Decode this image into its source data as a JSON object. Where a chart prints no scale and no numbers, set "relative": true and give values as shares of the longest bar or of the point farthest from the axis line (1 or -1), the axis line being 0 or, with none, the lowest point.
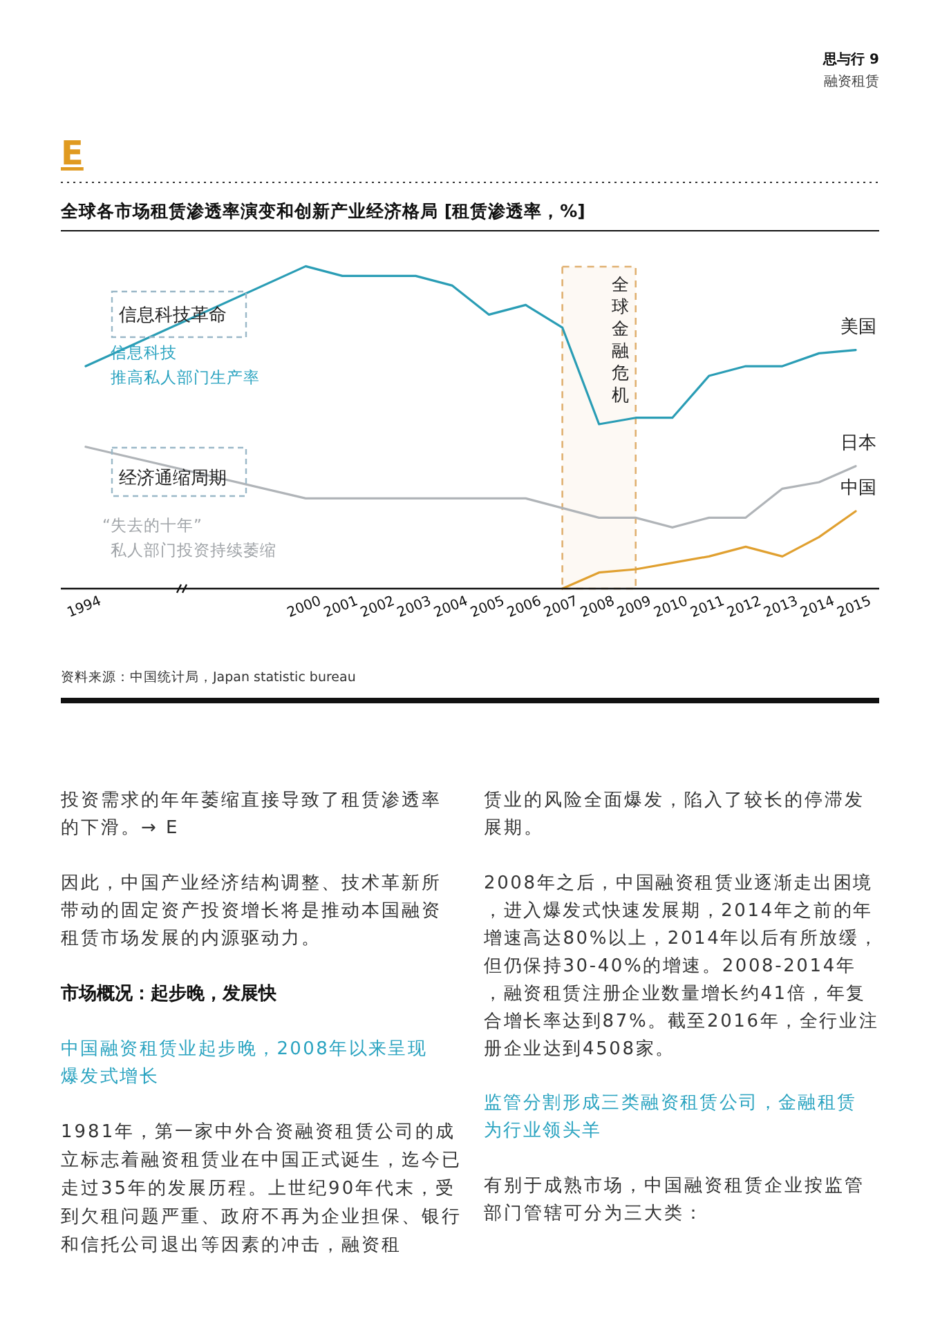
{
  "chart_data": {
    "type": "line",
    "title": "全球各市场租赁渗透率演变和创新产业经济格局 [租赁渗透率，%]",
    "relative": true,
    "categories": [
      "1994",
      null,
      null,
      null,
      null,
      null,
      "2000",
      "2001",
      "2002",
      "2003",
      "2004",
      "2005",
      "2006",
      "2007",
      "2008",
      "2009",
      "2010",
      "2011",
      "2012",
      "2013",
      "2014",
      "2015"
    ],
    "series": [
      {
        "name": "美国",
        "color": "#2a9db5",
        "values": [
          0.69,
          null,
          null,
          null,
          null,
          null,
          1,
          0.97,
          0.97,
          0.97,
          0.94,
          0.85,
          0.88,
          0.81,
          0.51,
          0.53,
          0.53,
          0.66,
          0.69,
          0.69,
          0.73,
          0.74
        ]
      },
      {
        "name": "日本",
        "color": "#b0b4b8",
        "values": [
          0.44,
          null,
          null,
          null,
          null,
          null,
          0.28,
          0.28,
          0.28,
          0.28,
          0.28,
          0.28,
          0.28,
          0.25,
          0.22,
          0.22,
          0.19,
          0.22,
          0.22,
          0.31,
          0.33,
          0.38
        ]
      },
      {
        "name": "中国",
        "color": "#e0a030",
        "values": [
          null,
          null,
          null,
          null,
          null,
          null,
          null,
          null,
          null,
          null,
          null,
          null,
          null,
          0,
          0.05,
          0.06,
          0.08,
          0.1,
          0.13,
          0.1,
          0.16,
          0.24
        ]
      }
    ],
    "bands": [
      {
        "axis": "x",
        "from": "2007",
        "to": "2009",
        "label": "全球金融危机",
        "color": "#e0b070"
      }
    ],
    "annotations": [
      "思与行 9",
      "融资租赁",
      "E",
      "信息科技革命",
      "信息科技",
      "推高私人部门生产率",
      "经济通缩周期",
      "“失去的十年”",
      "私人部门投资持续萎缩",
      "资料来源：中国统计局，Japan statistic bureau",
      "投资需求的年年萎缩直接导致了租赁渗透率的下滑。→ E",
      "因此，中国产业经济结构调整、技术革新所带动的固定资产投资增长将是推动本国融资租赁市场发展的内源驱动力。",
      "市场概况：起步晚，发展快",
      "中国融资租赁业起步晚，2008年以来呈现爆发式增长",
      "1981年，第一家中外合资融资租赁公司的成立标志着融资租赁业在中国正式诞生，迄今已走过35年的发展历程。上世纪90年代末，受到欠租问题严重、政府不再为企业担保、银行和信托公司退出等因素的冲击，融资租",
      "赁业的风险全面爆发，陷入了较长的停滞发展期。",
      "2008年之后，中国融资租赁业逐渐走出困境，进入爆发式快速发展期，2014年之前的年增速高达80%以上，2014年以后有所放缓，但仍保持30-40%的增速。2008-2014年，融资租赁注册企业数量增长约41倍，年复合增长率达到87%。截至2016年，全行业注册企业达到4508家。",
      "监管分割形成三类融资租赁公司，金融租赁为行业领头羊",
      "有别于成熟市场，中国融资租赁企业按监管部门管辖可分为三大类："
    ]
  }
}
